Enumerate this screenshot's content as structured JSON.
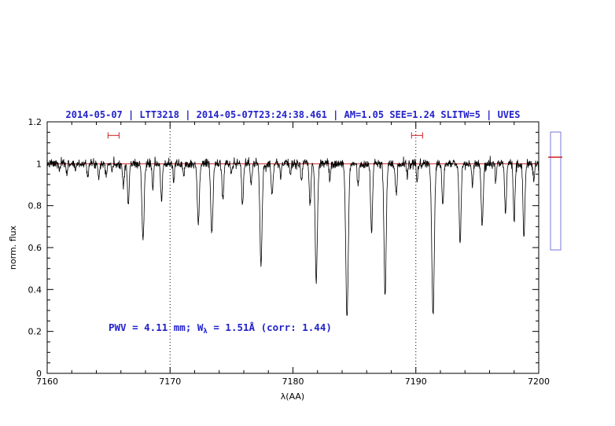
{
  "colors": {
    "accent_blue": "#2222cc",
    "line_red": "#cc2222",
    "gauge_blue": "#7777dd",
    "spectrum_black": "#000000"
  },
  "chart_data": {
    "type": "line",
    "title": "2014-05-07 | LTT3218 | 2014-05-07T23:24:38.461 | AM=1.05 SEE=1.24 SLITW=5 | UVES",
    "xlabel": "λ(AA)",
    "ylabel": "norm. flux",
    "xlim": [
      7160,
      7200
    ],
    "ylim": [
      0,
      1.2
    ],
    "x_ticks": [
      7160,
      7170,
      7180,
      7190,
      7200
    ],
    "y_ticks": [
      0,
      0.2,
      0.4,
      0.6,
      0.8,
      1,
      1.2
    ],
    "x_minor_step": 2,
    "y_minor_step": 0.05,
    "grid": false,
    "continuum_level": 1.0,
    "continuum_line_flux": 1.0,
    "dotted_vlines": [
      7170,
      7190
    ],
    "noise_sigma": 0.011,
    "noise_seed": 7,
    "n_points": 1600,
    "range_markers": [
      {
        "x_center": 7165.4,
        "half_width": 0.45,
        "flux": 1.135
      },
      {
        "x_center": 7190.1,
        "half_width": 0.45,
        "flux": 1.135
      }
    ],
    "annotation": {
      "prefix": "PWV = 4.11 mm; W",
      "sub": "λ",
      "suffix": " = 1.51Å (corr: 1.44)",
      "x": 7165,
      "flux": 0.22
    },
    "side_gauge": {
      "red_line_flux": 1.0
    },
    "absorption_lines": {
      "columns": [
        "wavelength_AA",
        "depth",
        "sigma_AA"
      ],
      "rows": [
        [
          7161.0,
          0.03,
          0.06
        ],
        [
          7161.6,
          0.04,
          0.06
        ],
        [
          7162.3,
          0.03,
          0.05
        ],
        [
          7163.3,
          0.05,
          0.06
        ],
        [
          7164.2,
          0.06,
          0.06
        ],
        [
          7164.8,
          0.05,
          0.05
        ],
        [
          7165.3,
          0.04,
          0.05
        ],
        [
          7166.2,
          0.1,
          0.07
        ],
        [
          7166.6,
          0.2,
          0.07
        ],
        [
          7167.8,
          0.36,
          0.09
        ],
        [
          7168.6,
          0.13,
          0.06
        ],
        [
          7169.3,
          0.18,
          0.07
        ],
        [
          7170.3,
          0.08,
          0.06
        ],
        [
          7171.1,
          0.06,
          0.06
        ],
        [
          7172.3,
          0.3,
          0.08
        ],
        [
          7173.4,
          0.33,
          0.09
        ],
        [
          7174.3,
          0.17,
          0.07
        ],
        [
          7175.0,
          0.05,
          0.05
        ],
        [
          7175.9,
          0.2,
          0.07
        ],
        [
          7176.6,
          0.1,
          0.06
        ],
        [
          7177.4,
          0.48,
          0.09
        ],
        [
          7178.3,
          0.15,
          0.07
        ],
        [
          7179.0,
          0.06,
          0.05
        ],
        [
          7179.8,
          0.05,
          0.05
        ],
        [
          7180.7,
          0.08,
          0.06
        ],
        [
          7181.4,
          0.2,
          0.07
        ],
        [
          7181.9,
          0.56,
          0.09
        ],
        [
          7183.0,
          0.08,
          0.06
        ],
        [
          7184.4,
          0.74,
          0.1
        ],
        [
          7185.3,
          0.1,
          0.06
        ],
        [
          7186.4,
          0.32,
          0.08
        ],
        [
          7187.5,
          0.63,
          0.09
        ],
        [
          7188.4,
          0.15,
          0.07
        ],
        [
          7189.3,
          0.06,
          0.05
        ],
        [
          7190.1,
          0.08,
          0.06
        ],
        [
          7191.4,
          0.72,
          0.1
        ],
        [
          7192.2,
          0.2,
          0.07
        ],
        [
          7193.6,
          0.38,
          0.08
        ],
        [
          7194.6,
          0.1,
          0.06
        ],
        [
          7195.4,
          0.3,
          0.08
        ],
        [
          7196.5,
          0.08,
          0.06
        ],
        [
          7197.3,
          0.25,
          0.07
        ],
        [
          7198.0,
          0.28,
          0.07
        ],
        [
          7198.8,
          0.35,
          0.08
        ],
        [
          7199.6,
          0.08,
          0.06
        ]
      ]
    }
  }
}
